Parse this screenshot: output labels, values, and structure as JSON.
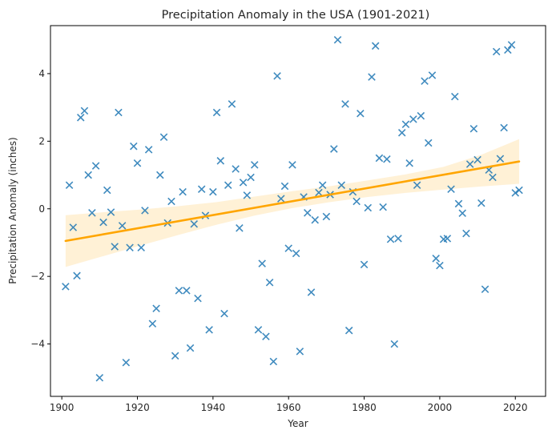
{
  "chart_data": {
    "type": "scatter",
    "title": "Precipitation Anomaly in the USA (1901-2021)",
    "xlabel": "Year",
    "ylabel": "Precipitation Anomaly (inches)",
    "xlim": [
      1897,
      2028
    ],
    "ylim": [
      -5.55,
      5.42
    ],
    "xticks": [
      1900,
      1920,
      1940,
      1960,
      1980,
      2000,
      2020
    ],
    "yticks": [
      -4,
      -2,
      0,
      2,
      4
    ],
    "grid": false,
    "marker": "x",
    "colors": {
      "points": "#1f77b4",
      "trend": "#ffa500",
      "band": "#ffa500"
    },
    "x": [
      1901,
      1902,
      1903,
      1904,
      1905,
      1906,
      1907,
      1908,
      1909,
      1910,
      1911,
      1912,
      1913,
      1914,
      1915,
      1916,
      1917,
      1918,
      1919,
      1920,
      1921,
      1922,
      1923,
      1924,
      1925,
      1926,
      1927,
      1928,
      1929,
      1930,
      1931,
      1932,
      1933,
      1934,
      1935,
      1936,
      1937,
      1938,
      1939,
      1940,
      1941,
      1942,
      1943,
      1944,
      1945,
      1946,
      1947,
      1948,
      1949,
      1950,
      1951,
      1952,
      1953,
      1954,
      1955,
      1956,
      1957,
      1958,
      1959,
      1960,
      1961,
      1962,
      1963,
      1964,
      1965,
      1966,
      1967,
      1968,
      1969,
      1970,
      1971,
      1972,
      1973,
      1974,
      1975,
      1976,
      1977,
      1978,
      1979,
      1980,
      1981,
      1982,
      1983,
      1984,
      1985,
      1986,
      1987,
      1988,
      1989,
      1990,
      1991,
      1992,
      1993,
      1994,
      1995,
      1996,
      1997,
      1998,
      1999,
      2000,
      2001,
      2002,
      2003,
      2004,
      2005,
      2006,
      2007,
      2008,
      2009,
      2010,
      2011,
      2012,
      2013,
      2014,
      2015,
      2016,
      2017,
      2018,
      2019,
      2020,
      2021
    ],
    "y": [
      -2.3,
      0.7,
      -0.55,
      -1.98,
      2.7,
      2.9,
      1.0,
      -0.12,
      1.27,
      -5.0,
      -0.4,
      0.55,
      -0.1,
      -1.12,
      2.85,
      -0.5,
      -4.55,
      -1.15,
      1.85,
      1.35,
      -1.15,
      -0.05,
      1.75,
      -3.4,
      -2.95,
      1.0,
      2.12,
      -0.42,
      0.22,
      -4.35,
      -2.42,
      0.5,
      -2.42,
      -4.12,
      -0.45,
      -2.65,
      0.58,
      -0.2,
      -3.58,
      0.5,
      2.85,
      1.42,
      -3.1,
      0.7,
      3.1,
      1.18,
      -0.57,
      0.78,
      0.4,
      0.93,
      1.3,
      -3.58,
      -1.62,
      -3.78,
      -2.18,
      -4.52,
      3.93,
      0.3,
      0.67,
      -1.17,
      1.3,
      -1.32,
      -4.22,
      0.35,
      -0.12,
      -2.47,
      -0.33,
      0.48,
      0.7,
      -0.23,
      0.42,
      1.77,
      5.0,
      0.7,
      3.1,
      -3.6,
      0.5,
      0.22,
      2.82,
      -1.65,
      0.03,
      3.9,
      4.82,
      1.5,
      0.05,
      1.47,
      -0.9,
      -4.0,
      -0.88,
      2.25,
      2.5,
      1.35,
      2.65,
      0.7,
      2.75,
      3.78,
      1.95,
      3.95,
      -1.47,
      -1.68,
      -0.9,
      -0.88,
      0.58,
      3.32,
      0.15,
      -0.13,
      -0.73,
      1.32,
      2.37,
      1.45,
      0.17,
      -2.38,
      1.15,
      0.93,
      4.65,
      1.48,
      2.4,
      4.7,
      4.85,
      0.47,
      0.55
    ],
    "trend": {
      "x": [
        1901,
        2021
      ],
      "y": [
        -0.95,
        1.4
      ]
    },
    "confidence_band": {
      "x": [
        1901,
        1911,
        1921,
        1931,
        1941,
        1951,
        1961,
        1971,
        1981,
        1991,
        2001,
        2011,
        2021
      ],
      "lower": [
        -1.72,
        -1.4,
        -1.08,
        -0.77,
        -0.47,
        -0.2,
        0.02,
        0.2,
        0.35,
        0.47,
        0.57,
        0.66,
        0.74
      ],
      "upper": [
        -0.19,
        -0.1,
        -0.02,
        0.08,
        0.2,
        0.36,
        0.52,
        0.67,
        0.84,
        1.02,
        1.24,
        1.6,
        2.06
      ]
    }
  }
}
